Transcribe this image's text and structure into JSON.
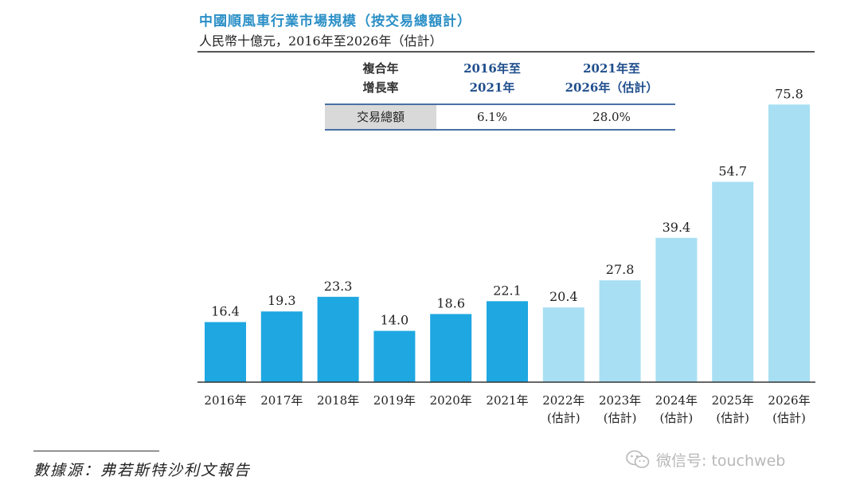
{
  "header": {
    "title": "中國順風車行業市場規模（按交易總額計）",
    "subtitle": "人民幣十億元，2016年至2026年（估計）"
  },
  "cagr_table": {
    "corner_line1": "複合年",
    "corner_line2": "增長率",
    "col1_line1": "2016年至",
    "col1_line2": "2021年",
    "col2_line1": "2021年至",
    "col2_line2": "2026年（估計）",
    "row_label": "交易總額",
    "col1_value": "6.1%",
    "col2_value": "28.0%"
  },
  "chart_data": {
    "type": "bar",
    "title": "中國順風車行業市場規模（按交易總額計）",
    "unit": "人民幣十億元，2016年至2026年（估計）",
    "categories": [
      "2016年",
      "2017年",
      "2018年",
      "2019年",
      "2020年",
      "2021年",
      "2022年",
      "2023年",
      "2024年",
      "2025年",
      "2026年"
    ],
    "category_notes": [
      "",
      "",
      "",
      "",
      "",
      "",
      "(估計)",
      "(估計)",
      "(估計)",
      "(估計)",
      "(估計)"
    ],
    "values": [
      16.4,
      19.3,
      23.3,
      14.0,
      18.6,
      22.1,
      20.4,
      27.8,
      39.4,
      54.7,
      75.8
    ],
    "value_labels": [
      "16.4",
      "19.3",
      "23.3",
      "14.0",
      "18.6",
      "22.1",
      "20.4",
      "27.8",
      "39.4",
      "54.7",
      "75.8"
    ],
    "estimated": [
      false,
      false,
      false,
      false,
      false,
      false,
      true,
      true,
      true,
      true,
      true
    ],
    "colors": {
      "actual": "#1ea7e1",
      "estimated": "#a8dff3",
      "axis": "#333333"
    },
    "ylim": [
      0,
      80
    ],
    "grid": false,
    "legend": "none"
  },
  "footer": {
    "source": "數據源：弗若斯特沙利文報告",
    "watermark": "微信号: touchweb",
    "watermark_icon": "wechat-icon"
  }
}
